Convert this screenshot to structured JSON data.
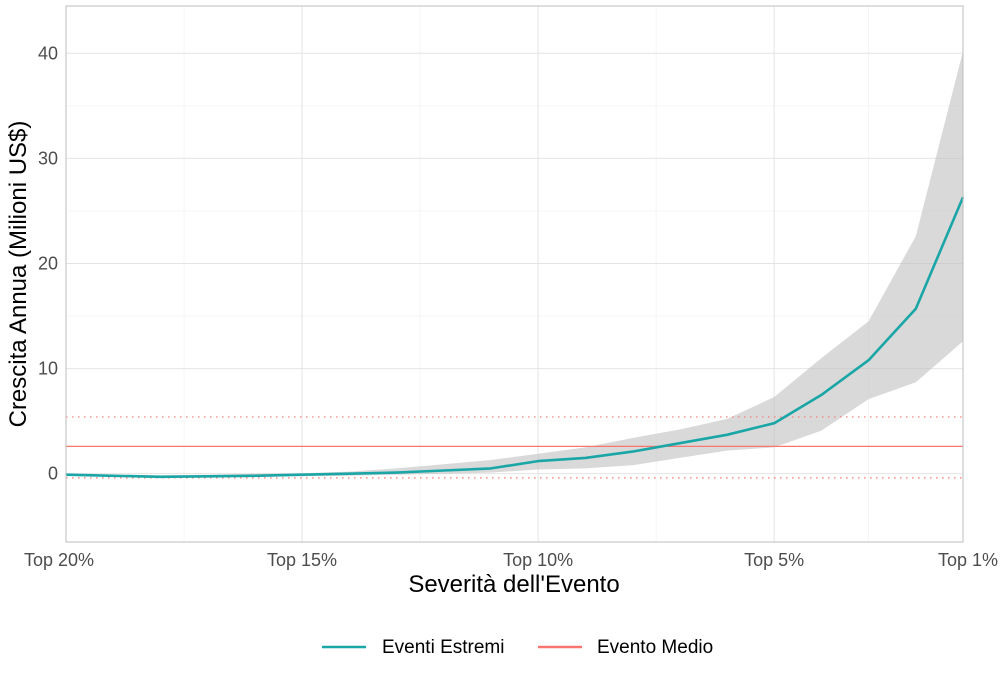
{
  "chart_data": {
    "type": "line",
    "xlabel": "Severità dell'Evento",
    "ylabel": "Crescita Annua (Milioni US$)",
    "x_ticks": [
      {
        "x": 20,
        "label": "Top 20%"
      },
      {
        "x": 15,
        "label": "Top 15%"
      },
      {
        "x": 10,
        "label": "Top 10%"
      },
      {
        "x": 5,
        "label": "Top 5%"
      },
      {
        "x": 1,
        "label": "Top 1%"
      }
    ],
    "xlim": [
      20,
      1
    ],
    "ylim": [
      -6.5,
      44.5
    ],
    "y_ticks": [
      0,
      10,
      20,
      30,
      40
    ],
    "grid": true,
    "legend_position": "bottom",
    "series": [
      {
        "name": "Eventi Estremi",
        "color": "#1aa6a6",
        "x": [
          20,
          19,
          18,
          17,
          16,
          15,
          14,
          13,
          12,
          11,
          10,
          9,
          8,
          7,
          6,
          5,
          4,
          3,
          2,
          1
        ],
        "y": [
          -0.1,
          -0.2,
          -0.3,
          -0.25,
          -0.2,
          -0.1,
          0.0,
          0.1,
          0.3,
          0.5,
          1.2,
          1.5,
          2.1,
          2.9,
          3.7,
          4.8,
          7.5,
          10.8,
          15.7,
          26.3
        ],
        "lower": [
          -0.2,
          -0.3,
          -0.4,
          -0.35,
          -0.3,
          -0.25,
          -0.2,
          -0.1,
          0.0,
          0.1,
          0.4,
          0.5,
          0.8,
          1.5,
          2.2,
          2.5,
          4.1,
          7.1,
          8.7,
          12.6
        ],
        "upper": [
          0.0,
          -0.1,
          -0.15,
          -0.1,
          0.0,
          0.05,
          0.2,
          0.5,
          0.9,
          1.3,
          1.9,
          2.5,
          3.4,
          4.2,
          5.2,
          7.3,
          11.0,
          14.5,
          22.6,
          40.2
        ]
      }
    ],
    "reference_lines": [
      {
        "name": "Evento Medio",
        "color": "#f8766d",
        "y": 2.6,
        "ci_lower": -0.4,
        "ci_upper": 5.4
      }
    ]
  }
}
